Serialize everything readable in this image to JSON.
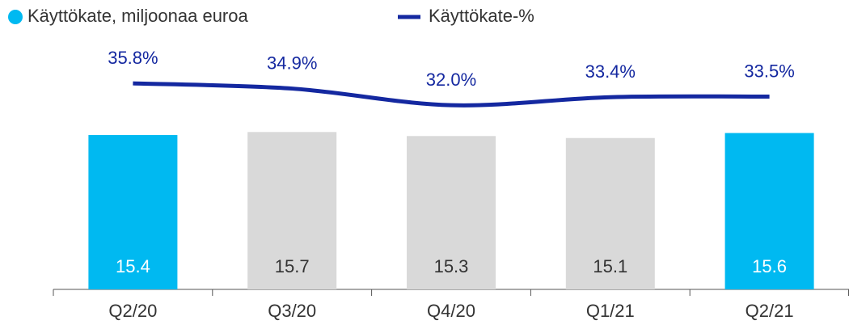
{
  "chart_data": {
    "type": "combo",
    "categories": [
      "Q2/20",
      "Q3/20",
      "Q4/20",
      "Q1/21",
      "Q2/21"
    ],
    "series": [
      {
        "name": "Käyttökate, miljoonaa euroa",
        "type": "bar",
        "color": "#00b9f1",
        "colors": [
          "#00b9f1",
          "#d9d9d9",
          "#d9d9d9",
          "#d9d9d9",
          "#00b9f1"
        ],
        "values": [
          15.4,
          15.7,
          15.3,
          15.1,
          15.6
        ]
      },
      {
        "name": "Käyttökate-%",
        "type": "line",
        "axis": "y2",
        "color": "#1428a0",
        "values": [
          35.8,
          34.9,
          32.0,
          33.4,
          33.5
        ],
        "value_labels": [
          "35.8%",
          "34.9%",
          "32.0%",
          "33.4%",
          "33.5%"
        ]
      }
    ]
  }
}
